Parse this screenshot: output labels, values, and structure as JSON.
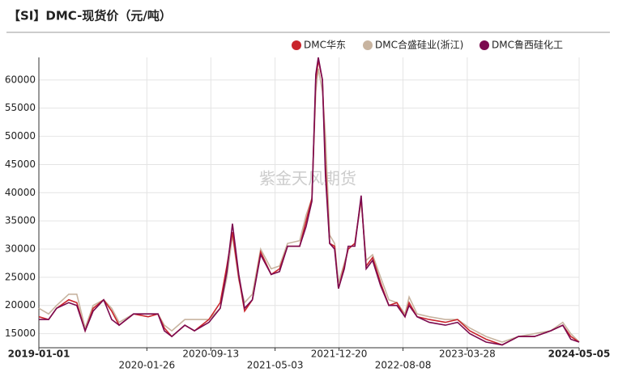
{
  "chart_data": {
    "type": "line",
    "title": "【SI】DMC-现货价（元/吨）",
    "watermark": "紫金天风期货",
    "x": [
      "2019-01-01",
      "2019-02-05",
      "2019-03-06",
      "2019-04-19",
      "2019-05-18",
      "2019-06-17",
      "2019-07-16",
      "2019-08-23",
      "2019-09-21",
      "2019-10-18",
      "2019-12-09",
      "2020-01-31",
      "2020-03-06",
      "2020-03-29",
      "2020-04-25",
      "2020-06-11",
      "2020-07-16",
      "2020-09-06",
      "2020-10-17",
      "2020-11-10",
      "2020-11-30",
      "2020-12-23",
      "2021-01-13",
      "2021-02-10",
      "2021-03-12",
      "2021-04-19",
      "2021-05-19",
      "2021-06-17",
      "2021-07-31",
      "2021-08-23",
      "2021-09-13",
      "2021-09-27",
      "2021-10-06",
      "2021-10-21",
      "2021-11-01",
      "2021-11-16",
      "2021-12-04",
      "2021-12-18",
      "2022-01-08",
      "2022-01-22",
      "2022-02-15",
      "2022-03-10",
      "2022-03-28",
      "2022-04-20",
      "2022-05-19",
      "2022-06-18",
      "2022-07-17",
      "2022-08-15",
      "2022-08-30",
      "2022-09-28",
      "2022-11-11",
      "2023-01-08",
      "2023-02-21",
      "2023-04-06",
      "2023-06-04",
      "2023-08-01",
      "2023-09-29",
      "2023-11-26",
      "2024-01-23",
      "2024-03-07",
      "2024-04-05",
      "2024-05-05"
    ],
    "series": [
      {
        "name": "DMC华东",
        "color": "#c9252c",
        "values": [
          18000,
          17500,
          19500,
          21000,
          20500,
          15500,
          19500,
          21000,
          19000,
          16500,
          18500,
          18000,
          18500,
          16000,
          14500,
          16500,
          15500,
          17500,
          20500,
          27000,
          33000,
          25000,
          19000,
          21000,
          29500,
          25500,
          26500,
          30500,
          30500,
          35000,
          39000,
          60000,
          63500,
          60000,
          45000,
          31000,
          30500,
          23000,
          27000,
          30000,
          31000,
          39000,
          27000,
          28500,
          24000,
          20000,
          20500,
          18000,
          20500,
          18000,
          17500,
          17000,
          17500,
          15500,
          14000,
          13000,
          14500,
          14500,
          15500,
          16500,
          14500,
          13500
        ]
      },
      {
        "name": "DMC合盛硅业(浙江)",
        "color": "#c8b4a0",
        "values": [
          19500,
          18500,
          20000,
          22000,
          22000,
          16000,
          20000,
          21000,
          19500,
          17000,
          18500,
          18500,
          18500,
          16500,
          15500,
          17500,
          17500,
          17500,
          19500,
          25000,
          32500,
          24500,
          20500,
          22000,
          30000,
          26500,
          27000,
          31000,
          31500,
          36000,
          39000,
          58000,
          62000,
          58000,
          50000,
          32500,
          31000,
          24000,
          27500,
          30000,
          31000,
          38500,
          28000,
          29000,
          25000,
          21000,
          20500,
          18500,
          21500,
          18500,
          18000,
          17500,
          17500,
          16000,
          14500,
          13500,
          14500,
          15000,
          15500,
          17000,
          15000,
          13500
        ]
      },
      {
        "name": "DMC鲁西硅化工",
        "color": "#7b0a4f",
        "values": [
          17500,
          17500,
          19500,
          20500,
          20000,
          15500,
          19000,
          21000,
          17500,
          16500,
          18500,
          18500,
          18500,
          15500,
          14500,
          16500,
          15500,
          17000,
          19500,
          26000,
          34500,
          25500,
          19500,
          21000,
          29000,
          25500,
          26000,
          30500,
          30500,
          34000,
          38500,
          61000,
          64000,
          60000,
          43000,
          31000,
          30000,
          23000,
          26500,
          30500,
          30500,
          39500,
          26500,
          28000,
          23500,
          20000,
          20000,
          18000,
          20000,
          18000,
          17000,
          16500,
          17000,
          15000,
          13500,
          13000,
          14500,
          14500,
          15500,
          16500,
          14000,
          13500
        ]
      }
    ],
    "xlim": [
      "2019-01-01",
      "2024-05-05"
    ],
    "xticks": [
      "2019-01-01",
      "2020-01-26",
      "2020-09-13",
      "2021-05-03",
      "2021-12-20",
      "2022-08-08",
      "2023-03-28",
      "2024-05-05"
    ],
    "ylim": [
      12500,
      64000
    ],
    "yticks": [
      15000,
      20000,
      25000,
      30000,
      35000,
      40000,
      45000,
      50000,
      55000,
      60000
    ],
    "grid": true
  }
}
